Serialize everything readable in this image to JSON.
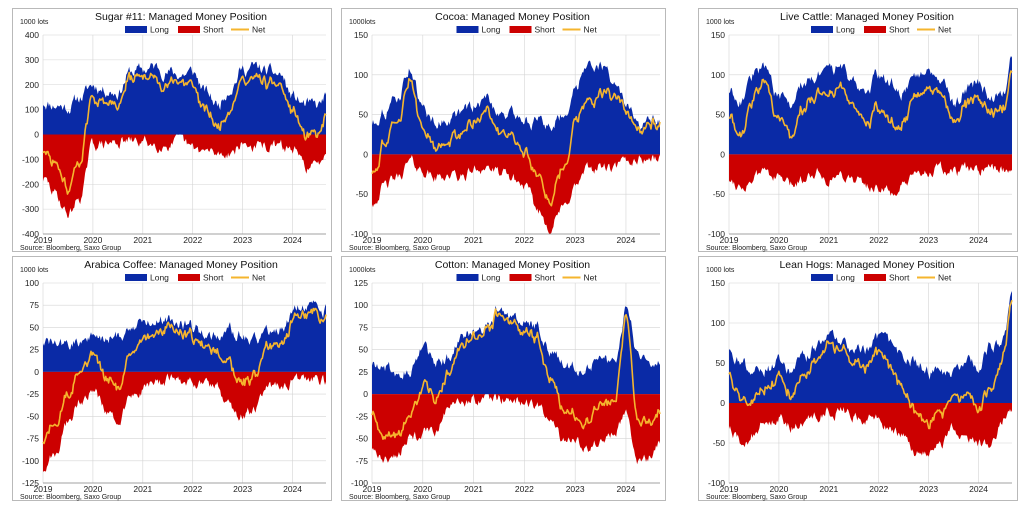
{
  "colors": {
    "long": "#0a2aa6",
    "short": "#cc0000",
    "net": "#f5b52e"
  },
  "legend": {
    "long": "Long",
    "short": "Short",
    "net": "Net"
  },
  "source": "Source:  Bloomberg,  Saxo Group",
  "chart_data": [
    {
      "id": "sugar",
      "type": "area",
      "title": "Sugar #11: Managed Money Position",
      "unit_label": "1000 lots",
      "ylim": [
        -400,
        400
      ],
      "yticks": [
        -400,
        -300,
        -200,
        -100,
        0,
        100,
        200,
        300,
        400
      ],
      "xlim": [
        2019.0,
        2024.67
      ],
      "xticks": [
        "2019",
        "2020",
        "2021",
        "2022",
        "2023",
        "2024"
      ],
      "x": [
        2019.0,
        2019.25,
        2019.5,
        2019.75,
        2020.0,
        2020.25,
        2020.5,
        2020.75,
        2021.0,
        2021.25,
        2021.5,
        2021.75,
        2022.0,
        2022.25,
        2022.5,
        2022.75,
        2023.0,
        2023.25,
        2023.5,
        2023.75,
        2024.0,
        2024.25,
        2024.5,
        2024.67
      ],
      "series": [
        {
          "name": "Long",
          "values": [
            130,
            120,
            110,
            150,
            200,
            180,
            170,
            250,
            260,
            270,
            250,
            240,
            250,
            170,
            120,
            190,
            260,
            270,
            250,
            240,
            150,
            120,
            110,
            150
          ]
        },
        {
          "name": "Short",
          "values": [
            -180,
            -240,
            -320,
            -250,
            -40,
            -40,
            -30,
            -30,
            -30,
            -40,
            -40,
            -30,
            -60,
            -70,
            -80,
            -70,
            -40,
            -50,
            -50,
            -50,
            -60,
            -130,
            -130,
            -60
          ]
        },
        {
          "name": "Net",
          "values": [
            -60,
            -110,
            -210,
            -100,
            150,
            140,
            130,
            220,
            230,
            230,
            210,
            200,
            190,
            90,
            30,
            120,
            220,
            220,
            200,
            190,
            90,
            -10,
            -20,
            80
          ]
        }
      ]
    },
    {
      "id": "cocoa",
      "type": "area",
      "title": "Cocoa: Managed Money Position",
      "unit_label": "1000lots",
      "ylim": [
        -100,
        150
      ],
      "yticks": [
        -100,
        -50,
        0,
        50,
        100,
        150
      ],
      "xlim": [
        2019.0,
        2024.67
      ],
      "xticks": [
        "2019",
        "2020",
        "2021",
        "2022",
        "2023",
        "2024"
      ],
      "x": [
        2019.0,
        2019.25,
        2019.5,
        2019.75,
        2020.0,
        2020.25,
        2020.5,
        2020.75,
        2021.0,
        2021.25,
        2021.5,
        2021.75,
        2022.0,
        2022.25,
        2022.5,
        2022.75,
        2023.0,
        2023.25,
        2023.5,
        2023.75,
        2024.0,
        2024.25,
        2024.5,
        2024.67
      ],
      "series": [
        {
          "name": "Long",
          "values": [
            40,
            55,
            70,
            110,
            55,
            40,
            45,
            50,
            60,
            70,
            55,
            50,
            45,
            40,
            35,
            50,
            80,
            120,
            110,
            95,
            60,
            35,
            40,
            40
          ]
        },
        {
          "name": "Short",
          "values": [
            -60,
            -40,
            -30,
            -10,
            -20,
            -30,
            -25,
            -30,
            -20,
            -15,
            -25,
            -30,
            -40,
            -70,
            -90,
            -70,
            -40,
            -20,
            -15,
            -20,
            -10,
            -5,
            -5,
            -5
          ]
        },
        {
          "name": "Net",
          "values": [
            -20,
            15,
            40,
            95,
            30,
            10,
            20,
            20,
            40,
            55,
            30,
            20,
            5,
            -30,
            -55,
            -20,
            40,
            70,
            75,
            75,
            50,
            30,
            35,
            35
          ]
        }
      ]
    },
    {
      "id": "livecattle",
      "type": "area",
      "title": "Live Cattle: Managed Money Position",
      "unit_label": "1000 lots",
      "ylim": [
        -100,
        150
      ],
      "yticks": [
        -100,
        -50,
        0,
        50,
        100,
        150
      ],
      "xlim": [
        2019.0,
        2024.67
      ],
      "xticks": [
        "2019",
        "2020",
        "2021",
        "2022",
        "2023",
        "2024"
      ],
      "x": [
        2019.0,
        2019.25,
        2019.5,
        2019.75,
        2020.0,
        2020.25,
        2020.5,
        2020.75,
        2021.0,
        2021.25,
        2021.5,
        2021.75,
        2022.0,
        2022.25,
        2022.5,
        2022.75,
        2023.0,
        2023.25,
        2023.5,
        2023.75,
        2024.0,
        2024.25,
        2024.5,
        2024.67
      ],
      "series": [
        {
          "name": "Long",
          "values": [
            80,
            70,
            100,
            110,
            70,
            60,
            90,
            100,
            100,
            110,
            90,
            80,
            100,
            90,
            80,
            100,
            110,
            100,
            60,
            80,
            90,
            70,
            80,
            120
          ]
        },
        {
          "name": "Short",
          "values": [
            -30,
            -40,
            -30,
            -20,
            -30,
            -40,
            -30,
            -20,
            -30,
            -25,
            -30,
            -40,
            -40,
            -50,
            -40,
            -30,
            -20,
            -20,
            -25,
            -20,
            -20,
            -20,
            -20,
            -15
          ]
        },
        {
          "name": "Net",
          "values": [
            50,
            30,
            70,
            90,
            40,
            20,
            60,
            80,
            70,
            85,
            60,
            40,
            60,
            40,
            40,
            70,
            90,
            80,
            35,
            60,
            70,
            50,
            60,
            105
          ]
        }
      ]
    },
    {
      "id": "arabica",
      "type": "area",
      "title": "Arabica  Coffee: Managed Money Position",
      "unit_label": "1000 lots",
      "ylim": [
        -125,
        100
      ],
      "yticks": [
        -125,
        -100,
        -75,
        -50,
        -25,
        0,
        25,
        50,
        75,
        100
      ],
      "xlim": [
        2019.0,
        2024.67
      ],
      "xticks": [
        "2019",
        "2020",
        "2021",
        "2022",
        "2023",
        "2024"
      ],
      "x": [
        2019.0,
        2019.25,
        2019.5,
        2019.75,
        2020.0,
        2020.25,
        2020.5,
        2020.75,
        2021.0,
        2021.25,
        2021.5,
        2021.75,
        2022.0,
        2022.25,
        2022.5,
        2022.75,
        2023.0,
        2023.25,
        2023.5,
        2023.75,
        2024.0,
        2024.25,
        2024.5,
        2024.67
      ],
      "series": [
        {
          "name": "Long",
          "values": [
            35,
            30,
            30,
            35,
            40,
            35,
            40,
            50,
            55,
            60,
            60,
            55,
            50,
            45,
            40,
            45,
            40,
            35,
            45,
            50,
            65,
            75,
            70,
            70
          ]
        },
        {
          "name": "Short",
          "values": [
            -110,
            -90,
            -60,
            -30,
            -20,
            -40,
            -60,
            -30,
            -20,
            -15,
            -10,
            -10,
            -10,
            -15,
            -20,
            -40,
            -50,
            -40,
            -20,
            -15,
            -10,
            -10,
            -10,
            -10
          ]
        },
        {
          "name": "Net",
          "values": [
            -75,
            -60,
            -30,
            5,
            20,
            -5,
            -20,
            20,
            35,
            45,
            50,
            45,
            40,
            30,
            20,
            5,
            -10,
            -5,
            25,
            35,
            55,
            65,
            60,
            60
          ]
        }
      ]
    },
    {
      "id": "cotton",
      "type": "area",
      "title": "Cotton: Managed Money Position",
      "unit_label": "1000lots",
      "ylim": [
        -100,
        125
      ],
      "yticks": [
        -100,
        -75,
        -50,
        -25,
        0,
        25,
        50,
        75,
        100,
        125
      ],
      "xlim": [
        2019.0,
        2024.67
      ],
      "xticks": [
        "2019",
        "2020",
        "2021",
        "2022",
        "2023",
        "2024"
      ],
      "x": [
        2019.0,
        2019.25,
        2019.5,
        2019.75,
        2020.0,
        2020.25,
        2020.5,
        2020.75,
        2021.0,
        2021.25,
        2021.5,
        2021.75,
        2022.0,
        2022.25,
        2022.5,
        2022.75,
        2023.0,
        2023.25,
        2023.5,
        2023.75,
        2024.0,
        2024.25,
        2024.5,
        2024.67
      ],
      "series": [
        {
          "name": "Long",
          "values": [
            35,
            30,
            25,
            30,
            50,
            35,
            40,
            60,
            70,
            75,
            95,
            85,
            80,
            75,
            50,
            35,
            30,
            35,
            40,
            30,
            95,
            40,
            35,
            35
          ]
        },
        {
          "name": "Short",
          "values": [
            -60,
            -75,
            -65,
            -50,
            -45,
            -40,
            -20,
            -10,
            -5,
            -5,
            -5,
            -5,
            -10,
            -15,
            -30,
            -50,
            -55,
            -60,
            -50,
            -45,
            -20,
            -75,
            -70,
            -55
          ]
        },
        {
          "name": "Net",
          "values": [
            -20,
            -50,
            -40,
            -20,
            5,
            -5,
            20,
            50,
            65,
            70,
            90,
            80,
            70,
            60,
            20,
            -15,
            -25,
            -25,
            -10,
            -15,
            85,
            -35,
            -30,
            -20
          ]
        }
      ]
    },
    {
      "id": "leanhogs",
      "type": "area",
      "title": "Lean Hogs: Managed Money Position",
      "unit_label": "1000 lots",
      "ylim": [
        -100,
        150
      ],
      "yticks": [
        -100,
        -50,
        0,
        50,
        100,
        150
      ],
      "xlim": [
        2019.0,
        2024.67
      ],
      "xticks": [
        "2019",
        "2020",
        "2021",
        "2022",
        "2023",
        "2024"
      ],
      "x": [
        2019.0,
        2019.25,
        2019.5,
        2019.75,
        2020.0,
        2020.25,
        2020.5,
        2020.75,
        2021.0,
        2021.25,
        2021.5,
        2021.75,
        2022.0,
        2022.25,
        2022.5,
        2022.75,
        2023.0,
        2023.25,
        2023.5,
        2023.75,
        2024.0,
        2024.25,
        2024.5,
        2024.67
      ],
      "series": [
        {
          "name": "Long",
          "values": [
            70,
            50,
            40,
            45,
            50,
            40,
            55,
            70,
            85,
            75,
            70,
            65,
            80,
            70,
            55,
            50,
            40,
            35,
            40,
            50,
            45,
            70,
            80,
            130
          ]
        },
        {
          "name": "Short",
          "values": [
            -30,
            -50,
            -40,
            -20,
            -20,
            -30,
            -25,
            -15,
            -10,
            -10,
            -15,
            -20,
            -20,
            -30,
            -40,
            -60,
            -65,
            -50,
            -30,
            -40,
            -50,
            -55,
            -20,
            -10
          ]
        },
        {
          "name": "Net",
          "values": [
            40,
            5,
            5,
            25,
            30,
            10,
            30,
            55,
            75,
            65,
            55,
            45,
            60,
            40,
            15,
            -10,
            -25,
            -15,
            10,
            10,
            -5,
            15,
            60,
            120
          ]
        }
      ]
    }
  ]
}
